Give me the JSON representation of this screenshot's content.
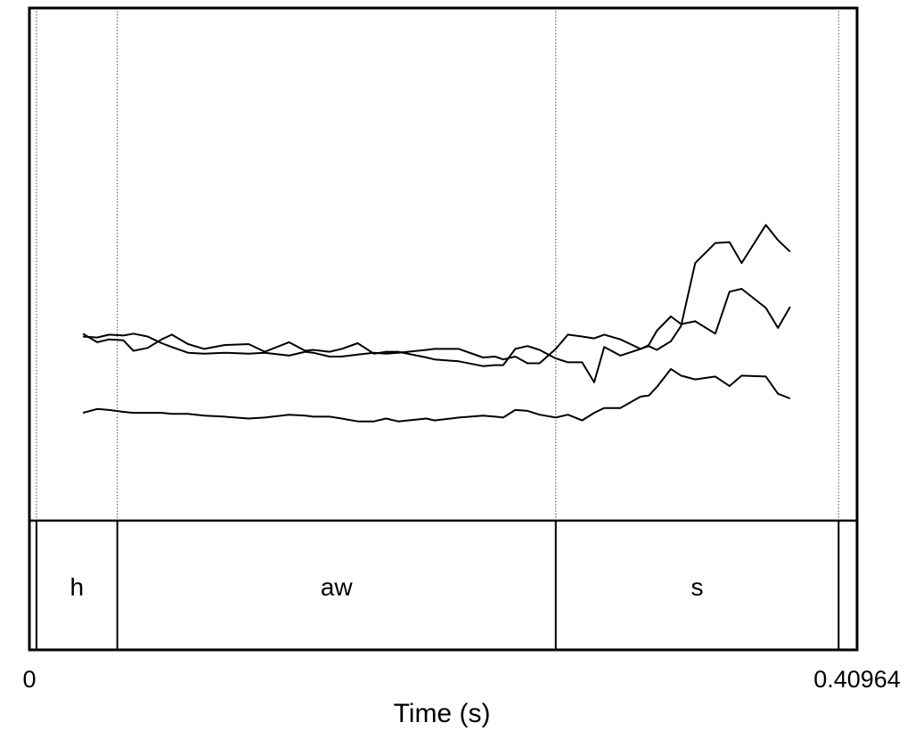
{
  "chart_data": {
    "type": "line",
    "title": "",
    "xlabel": "Time (s)",
    "ylabel": "",
    "xlim": [
      0,
      0.40964
    ],
    "x_tick_labels": [
      "0",
      "0.40964"
    ],
    "boundaries": [
      0.0035,
      0.0435,
      0.2605,
      0.4005
    ],
    "intervals": [
      {
        "label": "h",
        "start": 0.0035,
        "end": 0.0435
      },
      {
        "label": "aw",
        "start": 0.0435,
        "end": 0.2605
      },
      {
        "label": "s",
        "start": 0.2605,
        "end": 0.4005
      }
    ],
    "series": [
      {
        "x": [
          0.0265,
          0.0335,
          0.0395,
          0.0465,
          0.0515,
          0.0585,
          0.0655,
          0.0705,
          0.0785,
          0.0865,
          0.0965,
          0.1085,
          0.1165,
          0.1285,
          0.1365,
          0.1405,
          0.1485,
          0.1545,
          0.1625,
          0.1705,
          0.1765,
          0.1825,
          0.1965,
          0.2005,
          0.2125,
          0.2245,
          0.2305,
          0.2345,
          0.2405,
          0.2465,
          0.2525,
          0.2605,
          0.2665,
          0.2735,
          0.2795,
          0.2845,
          0.2925,
          0.3025,
          0.3065,
          0.3105,
          0.3175,
          0.3225,
          0.3295,
          0.3395,
          0.3465,
          0.3525,
          0.3645,
          0.3705,
          0.3765
        ],
        "values": [
          1.93,
          1.92,
          1.95,
          1.94,
          1.96,
          1.93,
          1.86,
          1.82,
          1.76,
          1.75,
          1.76,
          1.75,
          1.76,
          1.73,
          1.77,
          1.76,
          1.72,
          1.72,
          1.74,
          1.76,
          1.75,
          1.76,
          1.79,
          1.8,
          1.8,
          1.71,
          1.72,
          1.69,
          1.72,
          1.65,
          1.65,
          1.8,
          1.95,
          1.93,
          1.91,
          1.95,
          1.9,
          1.8,
          1.83,
          1.79,
          1.88,
          2.04,
          2.7,
          2.91,
          2.92,
          2.7,
          3.1,
          2.94,
          2.82
        ]
      },
      {
        "x": [
          0.0265,
          0.0335,
          0.0395,
          0.0465,
          0.0515,
          0.0585,
          0.0655,
          0.0705,
          0.0785,
          0.0865,
          0.0965,
          0.1085,
          0.1165,
          0.1285,
          0.1365,
          0.1405,
          0.1485,
          0.1545,
          0.1625,
          0.1705,
          0.1765,
          0.1825,
          0.1965,
          0.2005,
          0.2125,
          0.2245,
          0.2305,
          0.2345,
          0.2405,
          0.2465,
          0.2525,
          0.2605,
          0.2665,
          0.2735,
          0.2795,
          0.2845,
          0.2925,
          0.3025,
          0.3065,
          0.3105,
          0.3175,
          0.3225,
          0.3295,
          0.3395,
          0.3465,
          0.3525,
          0.3645,
          0.3705,
          0.3765
        ],
        "values": [
          1.96,
          1.87,
          1.9,
          1.89,
          1.78,
          1.81,
          1.9,
          1.95,
          1.85,
          1.8,
          1.84,
          1.85,
          1.77,
          1.87,
          1.78,
          1.79,
          1.77,
          1.8,
          1.86,
          1.75,
          1.77,
          1.77,
          1.71,
          1.69,
          1.67,
          1.62,
          1.63,
          1.63,
          1.8,
          1.83,
          1.79,
          1.7,
          1.66,
          1.66,
          1.45,
          1.82,
          1.73,
          1.8,
          1.84,
          1.99,
          2.14,
          2.06,
          2.09,
          1.96,
          2.4,
          2.43,
          2.23,
          2.02,
          2.24
        ]
      },
      {
        "x": [
          0.0265,
          0.0335,
          0.0395,
          0.0465,
          0.0515,
          0.0585,
          0.0655,
          0.0705,
          0.0785,
          0.0865,
          0.0965,
          0.1085,
          0.1165,
          0.1285,
          0.1365,
          0.1405,
          0.1485,
          0.1545,
          0.1625,
          0.1705,
          0.1765,
          0.1825,
          0.1965,
          0.2005,
          0.2125,
          0.2245,
          0.2305,
          0.2345,
          0.2405,
          0.2465,
          0.2525,
          0.2605,
          0.2665,
          0.2735,
          0.2795,
          0.2845,
          0.2925,
          0.3025,
          0.3065,
          0.3105,
          0.3175,
          0.3225,
          0.3295,
          0.3395,
          0.3465,
          0.3525,
          0.3645,
          0.3705,
          0.3765
        ],
        "values": [
          1.13,
          1.17,
          1.16,
          1.14,
          1.13,
          1.13,
          1.13,
          1.12,
          1.12,
          1.1,
          1.09,
          1.07,
          1.08,
          1.11,
          1.1,
          1.09,
          1.09,
          1.07,
          1.04,
          1.04,
          1.07,
          1.04,
          1.07,
          1.05,
          1.08,
          1.1,
          1.09,
          1.08,
          1.16,
          1.15,
          1.11,
          1.08,
          1.11,
          1.05,
          1.13,
          1.18,
          1.18,
          1.3,
          1.31,
          1.4,
          1.59,
          1.52,
          1.48,
          1.51,
          1.41,
          1.52,
          1.51,
          1.33,
          1.28
        ]
      }
    ]
  }
}
